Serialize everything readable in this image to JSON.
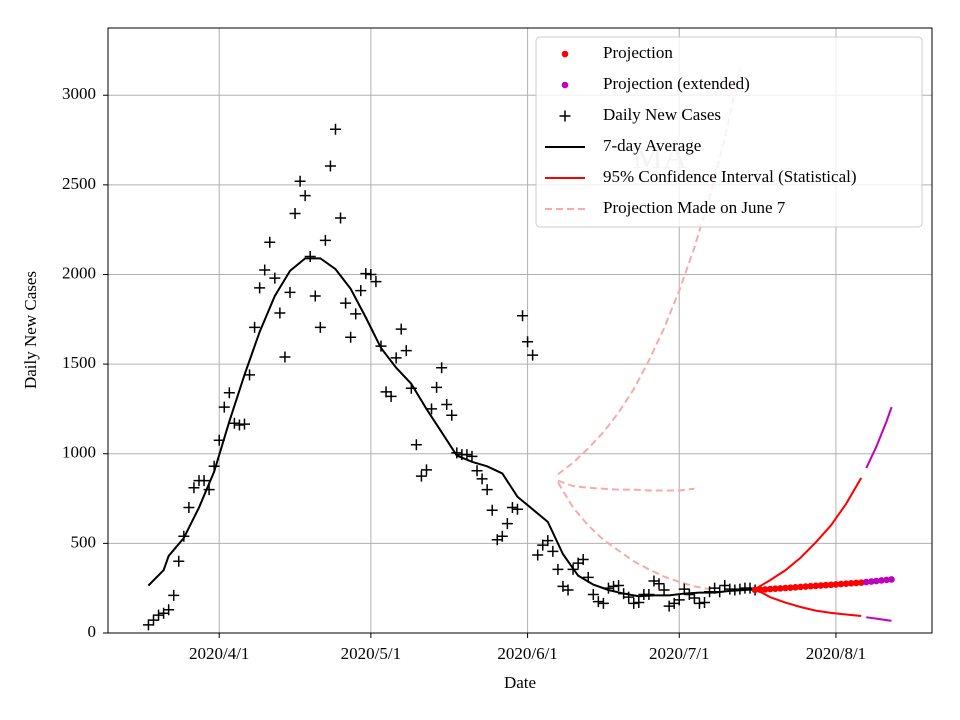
{
  "chart_data": {
    "type": "scatter",
    "title": "MA",
    "xlabel": "Date",
    "ylabel": "Daily New Cases",
    "xlim": [
      "2020/3/10",
      "2020/8/20"
    ],
    "xticks": [
      "2020/4/1",
      "2020/5/1",
      "2020/6/1",
      "2020/7/1",
      "2020/8/1"
    ],
    "ylim": [
      0,
      3375
    ],
    "yticks": [
      0,
      500,
      1000,
      1500,
      2000,
      2500,
      3000
    ],
    "grid": true,
    "legend": "upper right",
    "series": [
      {
        "name": "Projection",
        "type": "scatter",
        "marker": "dot",
        "color": "#ff0000",
        "x": [
          "2020/7/16",
          "2020/7/17",
          "2020/7/18",
          "2020/7/19",
          "2020/7/20",
          "2020/7/21",
          "2020/7/22",
          "2020/7/23",
          "2020/7/24",
          "2020/7/25",
          "2020/7/26",
          "2020/7/27",
          "2020/7/28",
          "2020/7/29",
          "2020/7/30",
          "2020/7/31",
          "2020/8/1",
          "2020/8/2",
          "2020/8/3",
          "2020/8/4",
          "2020/8/5",
          "2020/8/6"
        ],
        "values": [
          240,
          242,
          243,
          245,
          247,
          249,
          251,
          253,
          255,
          257,
          259,
          261,
          263,
          265,
          267,
          269,
          271,
          273,
          275,
          277,
          279,
          281
        ]
      },
      {
        "name": "Projection (extended)",
        "type": "scatter",
        "marker": "dot",
        "color": "#bf00bf",
        "x": [
          "2020/8/7",
          "2020/8/8",
          "2020/8/9",
          "2020/8/10",
          "2020/8/11",
          "2020/8/12"
        ],
        "values": [
          284,
          287,
          290,
          293,
          296,
          299
        ]
      },
      {
        "name": "Daily New Cases",
        "type": "scatter",
        "marker": "plus",
        "color": "#000000",
        "x": [
          "2020/3/18",
          "2020/3/19",
          "2020/3/20",
          "2020/3/21",
          "2020/3/22",
          "2020/3/23",
          "2020/3/24",
          "2020/3/25",
          "2020/3/26",
          "2020/3/27",
          "2020/3/28",
          "2020/3/29",
          "2020/3/30",
          "2020/3/31",
          "2020/4/1",
          "2020/4/2",
          "2020/4/3",
          "2020/4/4",
          "2020/4/5",
          "2020/4/6",
          "2020/4/7",
          "2020/4/8",
          "2020/4/9",
          "2020/4/10",
          "2020/4/11",
          "2020/4/12",
          "2020/4/13",
          "2020/4/14",
          "2020/4/15",
          "2020/4/16",
          "2020/4/17",
          "2020/4/18",
          "2020/4/19",
          "2020/4/20",
          "2020/4/21",
          "2020/4/22",
          "2020/4/23",
          "2020/4/24",
          "2020/4/25",
          "2020/4/26",
          "2020/4/27",
          "2020/4/28",
          "2020/4/29",
          "2020/4/30",
          "2020/5/1",
          "2020/5/2",
          "2020/5/3",
          "2020/5/4",
          "2020/5/5",
          "2020/5/6",
          "2020/5/7",
          "2020/5/8",
          "2020/5/9",
          "2020/5/10",
          "2020/5/11",
          "2020/5/12",
          "2020/5/13",
          "2020/5/14",
          "2020/5/15",
          "2020/5/16",
          "2020/5/17",
          "2020/5/18",
          "2020/5/19",
          "2020/5/20",
          "2020/5/21",
          "2020/5/22",
          "2020/5/23",
          "2020/5/24",
          "2020/5/25",
          "2020/5/26",
          "2020/5/27",
          "2020/5/28",
          "2020/5/29",
          "2020/5/30",
          "2020/5/31",
          "2020/6/1",
          "2020/6/2",
          "2020/6/3",
          "2020/6/4",
          "2020/6/5",
          "2020/6/6",
          "2020/6/7",
          "2020/6/8",
          "2020/6/9",
          "2020/6/10",
          "2020/6/11",
          "2020/6/12",
          "2020/6/13",
          "2020/6/14",
          "2020/6/15",
          "2020/6/16",
          "2020/6/17",
          "2020/6/18",
          "2020/6/19",
          "2020/6/20",
          "2020/6/21",
          "2020/6/22",
          "2020/6/23",
          "2020/6/24",
          "2020/6/25",
          "2020/6/26",
          "2020/6/27",
          "2020/6/28",
          "2020/6/29",
          "2020/6/30",
          "2020/7/1",
          "2020/7/2",
          "2020/7/3",
          "2020/7/4",
          "2020/7/5",
          "2020/7/6",
          "2020/7/7",
          "2020/7/8",
          "2020/7/9",
          "2020/7/10",
          "2020/7/11",
          "2020/7/12",
          "2020/7/13",
          "2020/7/14",
          "2020/7/15",
          "2020/7/16"
        ],
        "values": [
          45,
          72,
          100,
          110,
          130,
          210,
          400,
          540,
          700,
          810,
          850,
          850,
          800,
          930,
          1075,
          1260,
          1340,
          1170,
          1160,
          1165,
          1440,
          1705,
          1925,
          2025,
          2180,
          1980,
          1785,
          1540,
          1900,
          2340,
          2520,
          2440,
          2100,
          1880,
          1705,
          2190,
          2605,
          2810,
          2315,
          1840,
          1650,
          1780,
          1910,
          2005,
          2000,
          1960,
          1600,
          1345,
          1320,
          1535,
          1695,
          1575,
          1365,
          1050,
          875,
          910,
          1250,
          1370,
          1480,
          1275,
          1215,
          1005,
          995,
          995,
          985,
          905,
          860,
          800,
          685,
          520,
          540,
          610,
          700,
          690,
          1770,
          1625,
          1550,
          435,
          490,
          515,
          455,
          355,
          260,
          240,
          355,
          390,
          410,
          310,
          215,
          175,
          165,
          250,
          260,
          265,
          220,
          200,
          165,
          170,
          215,
          215,
          290,
          275,
          240,
          150,
          165,
          185,
          245,
          215,
          195,
          165,
          170,
          230,
          250,
          230,
          265,
          245,
          240,
          245,
          250,
          250,
          240
        ]
      },
      {
        "name": "7-day Average",
        "type": "line",
        "color": "#000000",
        "x": [
          "2020/3/18",
          "2020/3/21",
          "2020/3/22",
          "2020/3/25",
          "2020/3/28",
          "2020/3/31",
          "2020/4/3",
          "2020/4/6",
          "2020/4/9",
          "2020/4/12",
          "2020/4/15",
          "2020/4/18",
          "2020/4/21",
          "2020/4/24",
          "2020/4/27",
          "2020/4/30",
          "2020/5/3",
          "2020/5/6",
          "2020/5/9",
          "2020/5/12",
          "2020/5/15",
          "2020/5/18",
          "2020/5/21",
          "2020/5/24",
          "2020/5/27",
          "2020/5/30",
          "2020/6/2",
          "2020/6/5",
          "2020/6/8",
          "2020/6/11",
          "2020/6/14",
          "2020/6/17",
          "2020/6/20",
          "2020/6/23",
          "2020/6/26",
          "2020/6/29",
          "2020/7/2",
          "2020/7/5",
          "2020/7/8",
          "2020/7/11",
          "2020/7/14",
          "2020/7/16"
        ],
        "values": [
          265,
          350,
          430,
          530,
          700,
          900,
          1180,
          1440,
          1680,
          1880,
          2020,
          2090,
          2090,
          2030,
          1920,
          1760,
          1590,
          1480,
          1390,
          1250,
          1120,
          990,
          955,
          930,
          890,
          760,
          690,
          620,
          440,
          320,
          270,
          240,
          220,
          205,
          210,
          210,
          220,
          225,
          225,
          235,
          240,
          245
        ]
      },
      {
        "name": "95% Confidence Interval (Statistical)",
        "type": "interval",
        "color": "#ff0000",
        "x": [
          "2020/7/16",
          "2020/7/19",
          "2020/7/22",
          "2020/7/25",
          "2020/7/28",
          "2020/7/31",
          "2020/8/3",
          "2020/8/6"
        ],
        "upper": [
          245,
          295,
          350,
          420,
          505,
          600,
          720,
          865
        ],
        "lower": [
          245,
          200,
          170,
          145,
          125,
          112,
          103,
          95
        ],
        "extended": {
          "color": "#bf00bf",
          "x": [
            "2020/8/7",
            "2020/8/8",
            "2020/8/9",
            "2020/8/10",
            "2020/8/11",
            "2020/8/12"
          ],
          "upper": [
            920,
            980,
            1040,
            1110,
            1180,
            1260
          ],
          "lower": [
            88,
            84,
            80,
            76,
            72,
            68
          ]
        }
      },
      {
        "name": "Projection Made on June 7",
        "type": "dashed",
        "color": "#f7aaaa",
        "x": [
          "2020/6/7",
          "2020/6/10",
          "2020/6/13",
          "2020/6/16",
          "2020/6/19",
          "2020/6/22",
          "2020/6/25",
          "2020/6/28",
          "2020/7/1",
          "2020/7/4",
          "2020/7/7",
          "2020/7/10",
          "2020/7/13"
        ],
        "upper": [
          885,
          950,
          1030,
          1120,
          1230,
          1360,
          1520,
          1700,
          1910,
          2150,
          2430,
          2760,
          3150
        ],
        "middle": [
          850,
          820,
          810,
          805,
          800,
          800,
          795,
          795,
          795,
          805,
          null,
          null,
          null
        ],
        "lower": [
          840,
          700,
          600,
          520,
          460,
          400,
          355,
          315,
          285,
          260,
          245,
          null,
          null
        ]
      }
    ]
  }
}
